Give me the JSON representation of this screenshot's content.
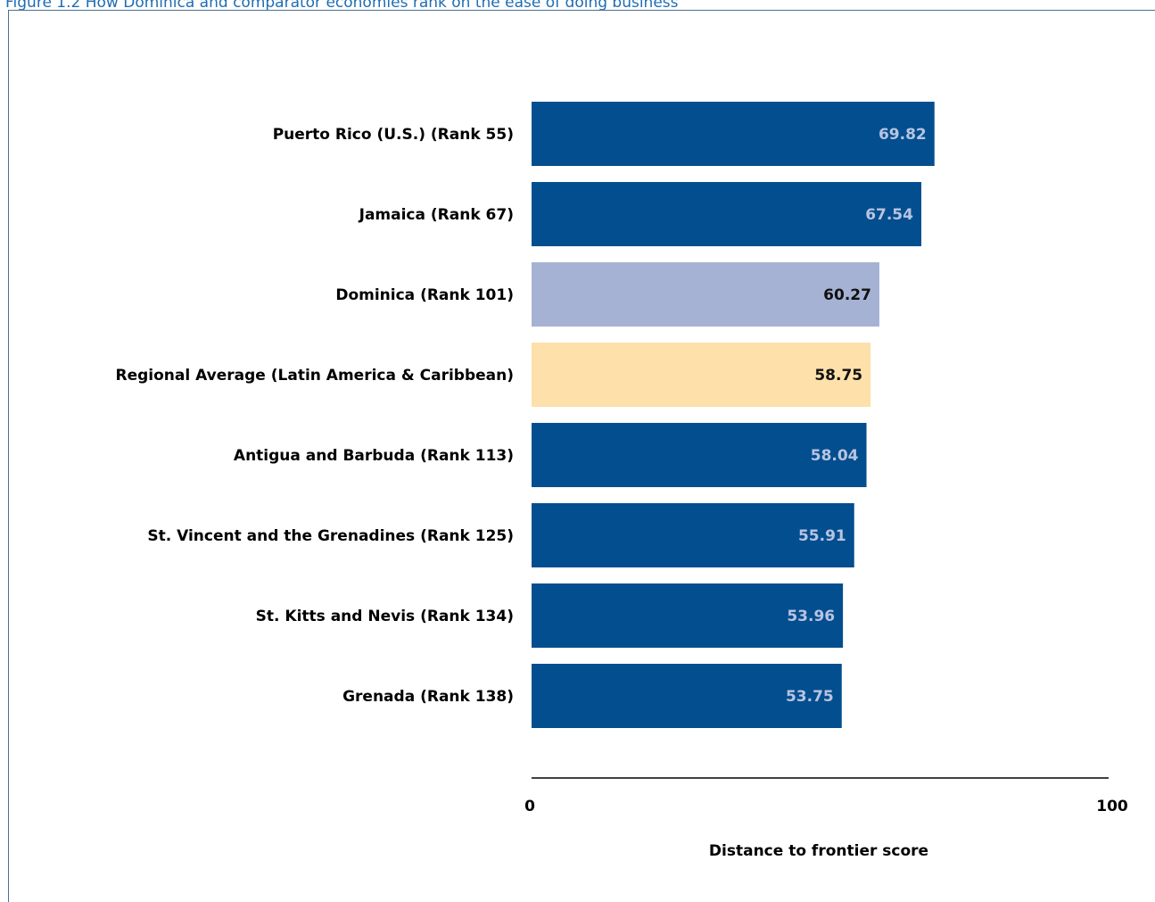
{
  "figure": {
    "caption": "Figure 1.2 How Dominica and comparator economies rank on the ease of doing business"
  },
  "chart_data": {
    "type": "bar",
    "orientation": "horizontal",
    "categories": [
      "Puerto Rico (U.S.) (Rank 55)",
      "Jamaica (Rank 67)",
      "Dominica (Rank 101)",
      "Regional Average (Latin America & Caribbean)",
      "Antigua and Barbuda (Rank 113)",
      "St. Vincent and the Grenadines (Rank 125)",
      "St. Kitts and Nevis (Rank 134)",
      "Grenada (Rank 138)"
    ],
    "values": [
      69.82,
      67.54,
      60.27,
      58.75,
      58.04,
      55.91,
      53.96,
      53.75
    ],
    "value_labels": [
      "69.82",
      "67.54",
      "60.27",
      "58.75",
      "58.04",
      "55.91",
      "53.96",
      "53.75"
    ],
    "bar_colors": [
      "#034e8f",
      "#034e8f",
      "#a6b2d4",
      "#fde0aa",
      "#034e8f",
      "#034e8f",
      "#034e8f",
      "#034e8f"
    ],
    "value_label_colors": [
      "#b8c4e0",
      "#b8c4e0",
      "#111111",
      "#111111",
      "#b8c4e0",
      "#b8c4e0",
      "#b8c4e0",
      "#b8c4e0"
    ],
    "xlim": [
      0,
      100
    ],
    "x_ticks": [
      "0",
      "100"
    ],
    "xlabel": "Distance to frontier score",
    "title": "",
    "grid": false,
    "legend": false
  }
}
